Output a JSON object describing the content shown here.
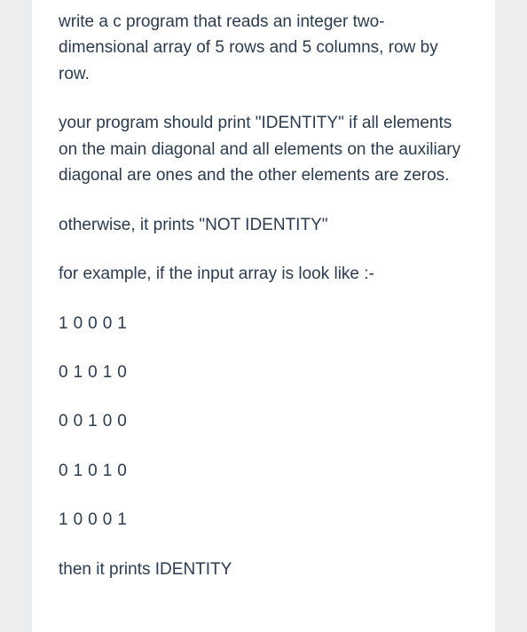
{
  "card": {
    "text_color": "#2a3b52",
    "background_color": "#ffffff",
    "page_background": "#ecedef",
    "font_size": 19,
    "paragraphs": [
      "write a c program that reads an integer two-dimensional array of 5 rows and 5 columns, row by row.",
      "your program should print \"IDENTITY\" if all elements on the main diagonal and all elements on the auxiliary diagonal are ones and the other elements are zeros.",
      "otherwise, it prints \"NOT IDENTITY\"",
      "for example, if the input array is look like :-"
    ],
    "matrix": [
      "10001",
      "01010",
      "00100",
      "01010",
      "10001"
    ],
    "closing": "then it prints IDENTITY"
  }
}
